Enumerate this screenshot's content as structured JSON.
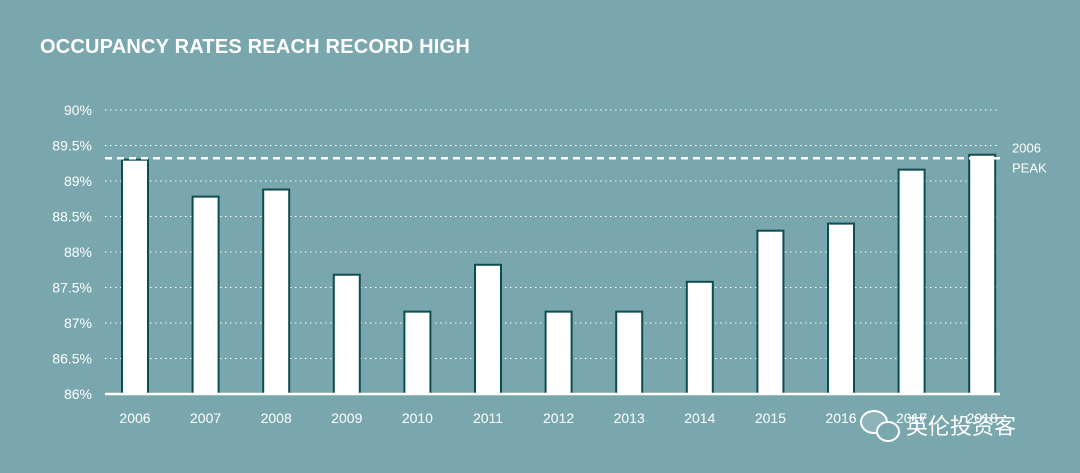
{
  "chart_data": {
    "type": "bar",
    "title": "OCCUPANCY RATES REACH RECORD HIGH",
    "categories": [
      "2006",
      "2007",
      "2008",
      "2009",
      "2010",
      "2011",
      "2012",
      "2013",
      "2014",
      "2015",
      "2016",
      "2017",
      "2018"
    ],
    "values": [
      89.3,
      88.78,
      88.88,
      87.68,
      87.16,
      87.82,
      87.16,
      87.16,
      87.58,
      88.3,
      88.4,
      89.16,
      89.37
    ],
    "ylim": [
      86,
      90
    ],
    "yticks": [
      86,
      86.5,
      87,
      87.5,
      88,
      88.5,
      89,
      89.5,
      90
    ],
    "ytick_labels": [
      "86%",
      "86.5%",
      "87%",
      "87.5%",
      "88%",
      "88.5%",
      "89%",
      "89.5%",
      "90%"
    ],
    "xlabel": "",
    "ylabel": "",
    "grid": true,
    "reference_line": {
      "value": 89.32,
      "label_lines": [
        "2006",
        "PEAK"
      ]
    },
    "colors": {
      "background": "#79a7ad",
      "bar_stroke": "#0e4d52",
      "bar_fill": "#ffffff",
      "text": "#ffffff"
    }
  },
  "watermark": {
    "text": "英伦投资客",
    "icon": "wechat-icon"
  }
}
